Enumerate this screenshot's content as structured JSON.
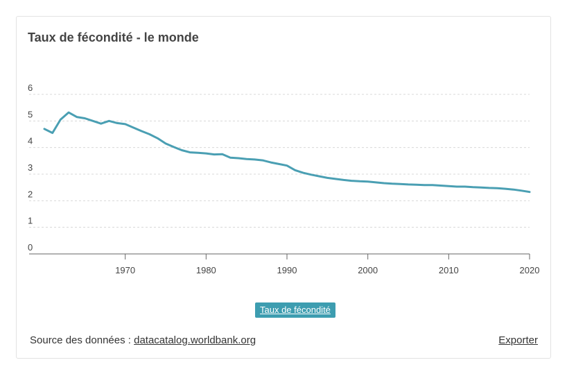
{
  "card": {
    "title": "Taux de fécondité - le monde"
  },
  "legend": {
    "label": "Taux de fécondité"
  },
  "footer": {
    "source_prefix": "Source des données :",
    "source_link": "datacatalog.worldbank.org",
    "export_label": "Exporter"
  },
  "colors": {
    "series": "#4a9fb3",
    "legend_bg": "#3d9db0",
    "grid": "#d8d8d8"
  },
  "chart_data": {
    "type": "line",
    "title": "Taux de fécondité - le monde",
    "xlabel": "",
    "ylabel": "",
    "xlim": [
      1960,
      2020
    ],
    "ylim": [
      0,
      6
    ],
    "x_ticks": [
      1970,
      1980,
      1990,
      2000,
      2010,
      2020
    ],
    "x_tick_labels": [
      "1970",
      "1980",
      "1990",
      "2000",
      "2010",
      "2020"
    ],
    "y_ticks": [
      0,
      1,
      2,
      3,
      4,
      5,
      6
    ],
    "y_tick_labels": [
      "0",
      "1",
      "2",
      "3",
      "4",
      "5",
      "6"
    ],
    "grid": true,
    "legend_position": "bottom",
    "series": [
      {
        "name": "Taux de fécondité",
        "color": "#4a9fb3",
        "x": [
          1960,
          1961,
          1962,
          1963,
          1964,
          1965,
          1966,
          1967,
          1968,
          1969,
          1970,
          1971,
          1972,
          1973,
          1974,
          1975,
          1976,
          1977,
          1978,
          1979,
          1980,
          1981,
          1982,
          1983,
          1984,
          1985,
          1986,
          1987,
          1988,
          1989,
          1990,
          1991,
          1992,
          1993,
          1994,
          1995,
          1996,
          1997,
          1998,
          1999,
          2000,
          2001,
          2002,
          2003,
          2004,
          2005,
          2006,
          2007,
          2008,
          2009,
          2010,
          2011,
          2012,
          2013,
          2014,
          2015,
          2016,
          2017,
          2018,
          2019,
          2020
        ],
        "values": [
          4.7,
          4.55,
          5.05,
          5.32,
          5.15,
          5.1,
          5.0,
          4.9,
          5.0,
          4.92,
          4.88,
          4.75,
          4.62,
          4.5,
          4.35,
          4.15,
          4.02,
          3.9,
          3.82,
          3.8,
          3.78,
          3.74,
          3.75,
          3.62,
          3.6,
          3.57,
          3.55,
          3.52,
          3.44,
          3.38,
          3.32,
          3.15,
          3.05,
          2.98,
          2.92,
          2.86,
          2.82,
          2.78,
          2.75,
          2.73,
          2.72,
          2.69,
          2.66,
          2.64,
          2.63,
          2.61,
          2.6,
          2.59,
          2.59,
          2.57,
          2.55,
          2.53,
          2.53,
          2.51,
          2.5,
          2.48,
          2.47,
          2.45,
          2.42,
          2.38,
          2.33
        ]
      }
    ]
  }
}
